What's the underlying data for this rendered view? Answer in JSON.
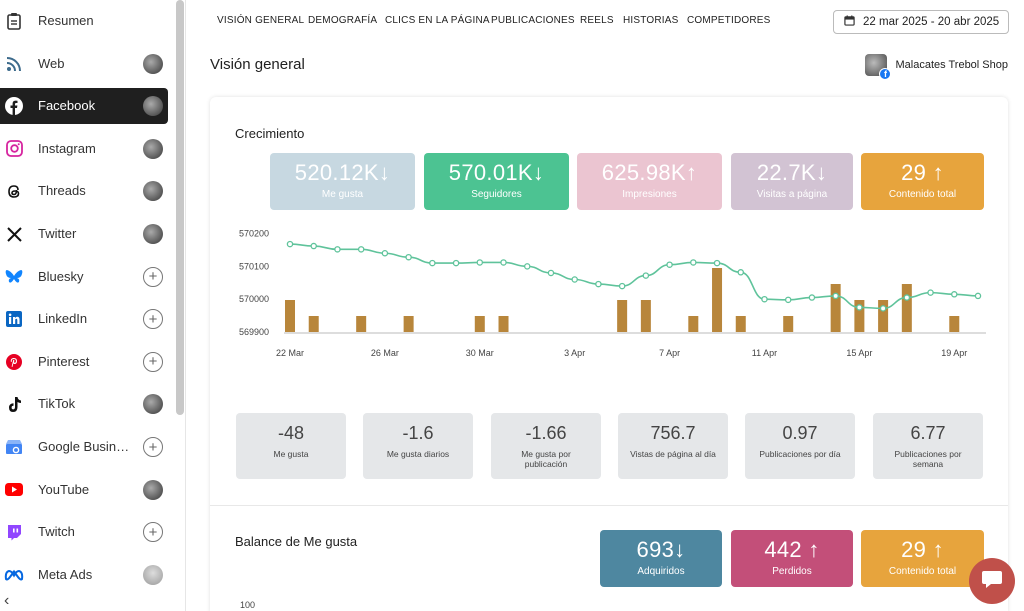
{
  "sidebar": {
    "items": [
      {
        "label": "Resumen",
        "icon": "clipboard-icon",
        "right": "none"
      },
      {
        "label": "Web",
        "icon": "rss-icon",
        "right": "avatar"
      },
      {
        "label": "Facebook",
        "icon": "facebook-icon",
        "right": "avatar",
        "active": true
      },
      {
        "label": "Instagram",
        "icon": "instagram-icon",
        "right": "avatar"
      },
      {
        "label": "Threads",
        "icon": "threads-icon",
        "right": "avatar"
      },
      {
        "label": "Twitter",
        "icon": "x-icon",
        "right": "avatar"
      },
      {
        "label": "Bluesky",
        "icon": "bluesky-icon",
        "right": "plus"
      },
      {
        "label": "LinkedIn",
        "icon": "linkedin-icon",
        "right": "plus"
      },
      {
        "label": "Pinterest",
        "icon": "pinterest-icon",
        "right": "plus"
      },
      {
        "label": "TikTok",
        "icon": "tiktok-icon",
        "right": "avatar"
      },
      {
        "label": "Google Business",
        "icon": "google-business-icon",
        "right": "plus"
      },
      {
        "label": "YouTube",
        "icon": "youtube-icon",
        "right": "avatar"
      },
      {
        "label": "Twitch",
        "icon": "twitch-icon",
        "right": "plus"
      },
      {
        "label": "Meta Ads",
        "icon": "meta-icon",
        "right": "avatar-grey"
      }
    ],
    "collapse_glyph": "‹"
  },
  "tabs": [
    "VISIÓN GENERAL",
    "DEMOGRAFÍA",
    "CLICS EN LA PÁGINA",
    "PUBLICACIONES",
    "REELS",
    "HISTORIAS",
    "COMPETIDORES"
  ],
  "date_range": "22 mar 2025 - 20 abr 2025",
  "page_title": "Visión general",
  "account_name": "Malacates Trebol Shop",
  "growth": {
    "title": "Crecimiento",
    "kpis": [
      {
        "value": "520.12K",
        "arrow": "↓",
        "label": "Me gusta",
        "color": "#c7d8e1"
      },
      {
        "value": "570.01K",
        "arrow": "↓",
        "label": "Seguidores",
        "color": "#4cc392"
      },
      {
        "value": "625.98K",
        "arrow": "↑",
        "label": "Impresiones",
        "color": "#ebc5d1"
      },
      {
        "value": "22.7K",
        "arrow": "↓",
        "label": "Visitas a página",
        "color": "#d2c3d3"
      },
      {
        "value": "29",
        "arrow": "↑",
        "label": "Contenido total",
        "color": "#e7a43d"
      }
    ],
    "stats": [
      {
        "value": "-48",
        "label": "Me gusta"
      },
      {
        "value": "-1.6",
        "label": "Me gusta diarios"
      },
      {
        "value": "-1.66",
        "label": "Me gusta por publicación"
      },
      {
        "value": "756.7",
        "label": "Vistas de página al día"
      },
      {
        "value": "0.97",
        "label": "Publicaciones por día"
      },
      {
        "value": "6.77",
        "label": "Publicaciones por semana"
      }
    ]
  },
  "balance": {
    "title": "Balance de Me gusta",
    "kpis": [
      {
        "value": "693",
        "arrow": "↓",
        "label": "Adquiridos",
        "color": "#4e87a0"
      },
      {
        "value": "442",
        "arrow": "↑",
        "label": "Perdidos",
        "color": "#c34f79"
      },
      {
        "value": "29",
        "arrow": "↑",
        "label": "Contenido total",
        "color": "#e7a43d"
      }
    ],
    "y_tick_top": "100"
  },
  "chart_data": {
    "type": "line",
    "ylim": [
      569900,
      570220
    ],
    "yticks": [
      "570200",
      "570100",
      "570000",
      "569900"
    ],
    "x_tick_labels": [
      {
        "label": "22 Mar",
        "day": 0
      },
      {
        "label": "26 Mar",
        "day": 4
      },
      {
        "label": "30 Mar",
        "day": 8
      },
      {
        "label": "3 Apr",
        "day": 12
      },
      {
        "label": "7 Apr",
        "day": 16
      },
      {
        "label": "11 Apr",
        "day": 20
      },
      {
        "label": "15 Apr",
        "day": 24
      },
      {
        "label": "19 Apr",
        "day": 28
      }
    ],
    "line_color": "#5fc39b",
    "bar_color": "#b8863b",
    "series": [
      {
        "name": "Seguidores",
        "values": [
          570168,
          570162,
          570152,
          570152,
          570140,
          570128,
          570110,
          570110,
          570112,
          570112,
          570100,
          570080,
          570060,
          570046,
          570040,
          570072,
          570105,
          570112,
          570110,
          570082,
          570000,
          569998,
          570005,
          570010,
          569975,
          569972,
          570005,
          570020,
          570015,
          570010
        ]
      },
      {
        "name": "Contenido",
        "values": [
          3,
          1.5,
          0,
          1.5,
          0,
          1.5,
          0,
          0,
          1.5,
          1.5,
          0,
          0,
          0,
          0,
          3,
          3,
          0,
          1.5,
          6,
          1.5,
          0,
          1.5,
          0,
          4.5,
          3,
          3,
          4.5,
          0,
          1.5,
          0
        ]
      }
    ]
  }
}
